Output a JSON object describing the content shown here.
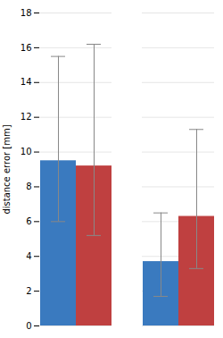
{
  "chart_data": {
    "type": "bar",
    "categories": [
      null,
      null
    ],
    "series": [
      {
        "color": "#3a7abf",
        "values": [
          9.5,
          3.7
        ],
        "error_up": [
          6.0,
          2.8
        ],
        "error_down": [
          3.5,
          2.0
        ]
      },
      {
        "color": "#bf4040",
        "values": [
          9.2,
          6.3
        ],
        "error_up": [
          7.0,
          5.0
        ],
        "error_down": [
          4.0,
          3.0
        ]
      }
    ],
    "ylabel": "distance error [mm]",
    "ylim": [
      0,
      18
    ],
    "yticks": [
      0,
      2,
      4,
      6,
      8,
      10,
      12,
      14,
      16,
      18
    ],
    "grid": true,
    "tick_labels": "y"
  }
}
